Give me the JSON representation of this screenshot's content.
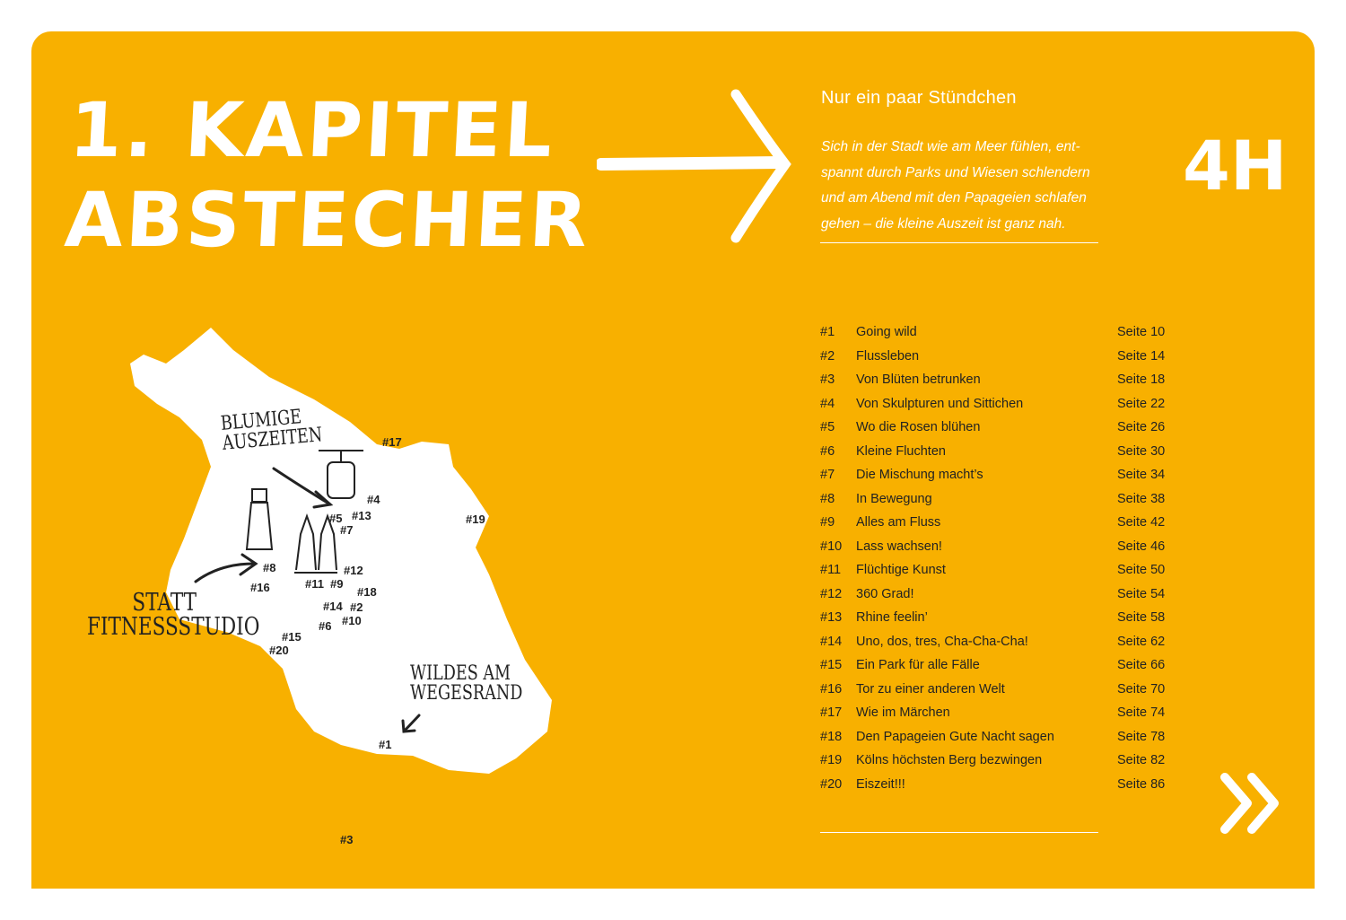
{
  "chapter": {
    "line1": "1. KAPITEL",
    "line2": "ABSTECHER"
  },
  "subtitle": "Nur ein paar Stündchen",
  "intro": "Sich in der Stadt wie am Meer fühlen, ent-spannt durch Parks und Wiesen schlendern und am Abend mit den Papageien schlafen gehen – die kleine Auszeit ist ganz nah.",
  "duration": "4H",
  "toc": [
    {
      "num": "#1",
      "title": "Going wild",
      "page": "Seite  10"
    },
    {
      "num": "#2",
      "title": "Flussleben",
      "page": "Seite  14"
    },
    {
      "num": "#3",
      "title": "Von Blüten betrunken",
      "page": "Seite  18"
    },
    {
      "num": "#4",
      "title": "Von Skulpturen und Sittichen",
      "page": "Seite  22"
    },
    {
      "num": "#5",
      "title": "Wo die Rosen blühen",
      "page": "Seite  26"
    },
    {
      "num": "#6",
      "title": "Kleine Fluchten",
      "page": "Seite  30"
    },
    {
      "num": "#7",
      "title": "Die Mischung macht’s",
      "page": "Seite  34"
    },
    {
      "num": "#8",
      "title": "In Bewegung",
      "page": "Seite  38"
    },
    {
      "num": "#9",
      "title": "Alles am Fluss",
      "page": "Seite  42"
    },
    {
      "num": "#10",
      "title": "Lass wachsen!",
      "page": "Seite  46"
    },
    {
      "num": "#11",
      "title": "Flüchtige Kunst",
      "page": "Seite  50"
    },
    {
      "num": "#12",
      "title": "360 Grad!",
      "page": "Seite  54"
    },
    {
      "num": "#13",
      "title": "Rhine feelin’",
      "page": "Seite  58"
    },
    {
      "num": "#14",
      "title": "Uno, dos, tres, Cha-Cha-Cha!",
      "page": "Seite  62"
    },
    {
      "num": "#15",
      "title": "Ein Park für alle Fälle",
      "page": "Seite  66"
    },
    {
      "num": "#16",
      "title": "Tor zu einer anderen Welt",
      "page": "Seite  70"
    },
    {
      "num": "#17",
      "title": "Wie im Märchen",
      "page": "Seite  74"
    },
    {
      "num": "#18",
      "title": "Den Papageien Gute Nacht sagen",
      "page": "Seite  78"
    },
    {
      "num": "#19",
      "title": "Kölns höchsten Berg bezwingen",
      "page": "Seite  82"
    },
    {
      "num": "#20",
      "title": "Eiszeit!!!",
      "page": "Seite  86"
    }
  ],
  "map": {
    "callouts": {
      "blumige1": "BLUMIGE",
      "blumige2": "AUSZEITEN",
      "statt1": "STATT",
      "statt2": "FITNESSSTUDIO",
      "wildes1": "WILDES AM",
      "wildes2": "WEGESRAND"
    },
    "markers": [
      "#1",
      "#2",
      "#3",
      "#4",
      "#5",
      "#6",
      "#7",
      "#8",
      "#9",
      "#10",
      "#11",
      "#12",
      "#13",
      "#14",
      "#15",
      "#16",
      "#17",
      "#18",
      "#19",
      "#20"
    ]
  },
  "colors": {
    "background": "#F8B000",
    "text": "#FFFFFF",
    "ink": "#222222"
  },
  "icons": {
    "arrow": "arrow-right-icon",
    "next": "double-chevron-right-icon"
  }
}
